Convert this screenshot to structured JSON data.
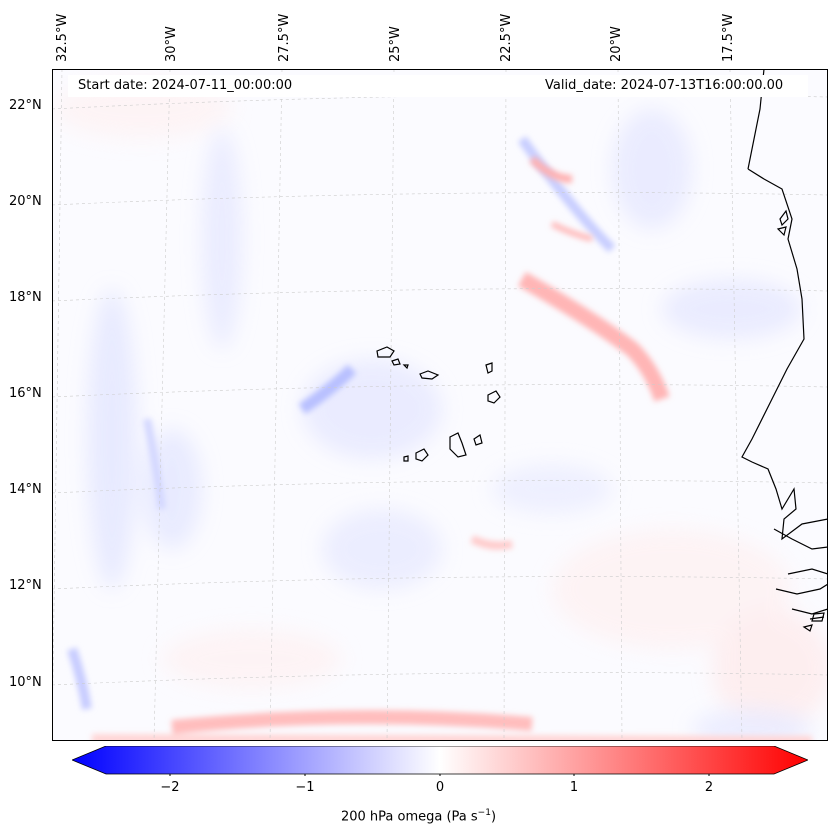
{
  "map": {
    "start_date": "Start date: 2024-07-11_00:00:00",
    "valid_date": "Valid_date: 2024-07-13T16:00:00.00",
    "lon_labels": [
      "32.5°W",
      "30°W",
      "27.5°W",
      "25°W",
      "22.5°W",
      "20°W",
      "17.5°W"
    ],
    "lat_labels": [
      "22°N",
      "20°N",
      "18°N",
      "16°N",
      "14°N",
      "12°N",
      "10°N"
    ]
  },
  "colorbar": {
    "ticks": [
      "−2",
      "−1",
      "0",
      "1",
      "2"
    ],
    "label": "200 hPa omega (Pa s",
    "label_sup": "−1",
    "label_end": ")",
    "colors": {
      "negative": "#0000ff",
      "neutral": "#ffffff",
      "positive": "#ff0000"
    }
  }
}
